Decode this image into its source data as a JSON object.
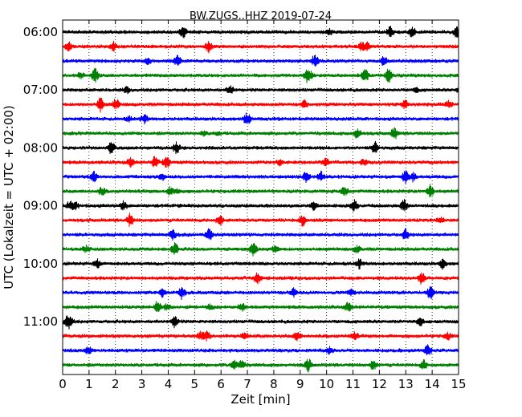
{
  "chart_data": {
    "type": "line",
    "title": "BW.ZUGS..HHZ 2019-07-24",
    "xlabel": "Zeit  [min]",
    "ylabel": "UTC (Lokalzeit = UTC + 02:00)",
    "xlim": [
      0,
      15
    ],
    "x_ticks": [
      0,
      1,
      2,
      3,
      4,
      5,
      6,
      7,
      8,
      9,
      10,
      11,
      12,
      13,
      14,
      15
    ],
    "y_ticks": [
      "06:00",
      "07:00",
      "08:00",
      "09:00",
      "10:00",
      "11:00"
    ],
    "start_time": "06:00",
    "trace_interval_minutes": 15,
    "trace_count": 24,
    "colors": [
      "#000000",
      "#ff0000",
      "#0000ff",
      "#008000"
    ],
    "grid": "vertical dotted"
  }
}
